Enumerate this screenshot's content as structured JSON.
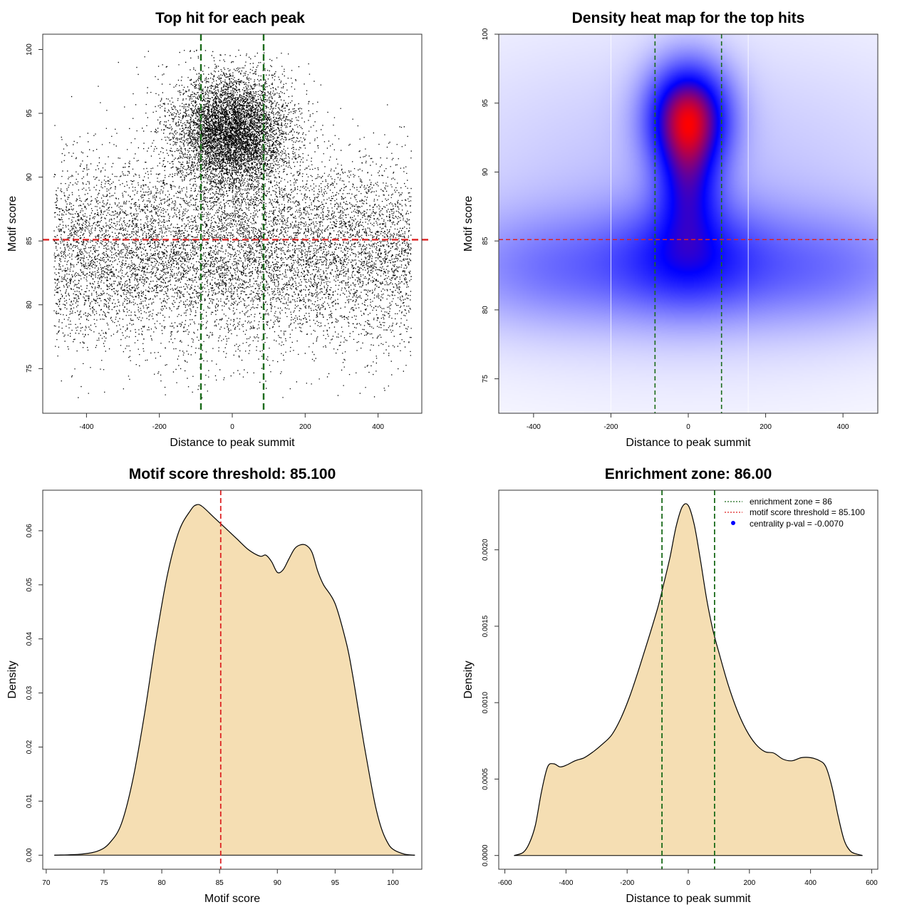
{
  "chart_data": [
    {
      "type": "scatter",
      "title": "Top hit for each peak",
      "xlabel": "Distance to peak summit",
      "ylabel": "Motif score",
      "xlim": [
        -520,
        520
      ],
      "ylim": [
        71.5,
        101.2
      ],
      "xticks": [
        -400,
        -200,
        0,
        200,
        400
      ],
      "yticks": [
        75,
        80,
        85,
        90,
        95,
        100
      ],
      "x_range_of_points": [
        -490,
        490
      ],
      "y_range_of_points": [
        72.5,
        100
      ],
      "point_clusters": [
        {
          "n": 9000,
          "x_mean": 0,
          "x_sd": 290,
          "y_mean": 84,
          "y_sd": 3.6
        },
        {
          "n": 6500,
          "x_mean": 0,
          "x_sd": 75,
          "y_mean": 93.5,
          "y_sd": 2.2
        },
        {
          "n": 1000,
          "x_mean": 0,
          "x_sd": 130,
          "y_mean": 89.5,
          "y_sd": 5.5
        }
      ],
      "vlines": [
        -86,
        86
      ],
      "hline": 85.1,
      "point_color": "#000000",
      "vline_color": "#1a6b1a",
      "hline_color": "#dd2222"
    },
    {
      "type": "heatmap",
      "title": "Density heat map for the top hits",
      "xlabel": "Distance to peak summit",
      "ylabel": "Motif score",
      "xlim": [
        -490,
        490
      ],
      "ylim": [
        72.5,
        100
      ],
      "xticks": [
        -400,
        -200,
        0,
        200,
        400
      ],
      "yticks": [
        75,
        80,
        85,
        90,
        95,
        100
      ],
      "density_blobs": [
        {
          "x": 0,
          "y": 94,
          "sx": 70,
          "sy": 2.6,
          "w": 1.0
        },
        {
          "x": 0,
          "y": 89,
          "sx": 55,
          "sy": 2.8,
          "w": 0.45
        },
        {
          "x": 0,
          "y": 84,
          "sx": 120,
          "sy": 2.8,
          "w": 0.35
        },
        {
          "x": -300,
          "y": 83,
          "sx": 230,
          "sy": 2.8,
          "w": 0.26
        },
        {
          "x": 300,
          "y": 83,
          "sx": 230,
          "sy": 2.8,
          "w": 0.26
        },
        {
          "x": 0,
          "y": 88,
          "sx": 520,
          "sy": 8,
          "w": 0.12
        }
      ],
      "palette": [
        "#ffffff",
        "#0000ff",
        "#ff0000"
      ],
      "vlines": [
        -86,
        86
      ],
      "hline": 85.1,
      "white_gridlines": [
        -200,
        155
      ],
      "vline_color": "#1a6b1a",
      "hline_color": "#dd2222"
    },
    {
      "type": "area",
      "title": "Motif score threshold: 85.100",
      "xlabel": "Motif score",
      "ylabel": "Density",
      "xlim": [
        69.7,
        102.5
      ],
      "ylim": [
        -0.0026,
        0.0675
      ],
      "xticks": [
        70,
        75,
        80,
        85,
        90,
        95,
        100
      ],
      "yticks": [
        0.0,
        0.01,
        0.02,
        0.03,
        0.04,
        0.05,
        0.06
      ],
      "ytick_labels": [
        "0.00",
        "0.01",
        "0.02",
        "0.03",
        "0.04",
        "0.05",
        "0.06"
      ],
      "x": [
        70.7,
        73,
        74.5,
        75.5,
        76.5,
        77.5,
        78.5,
        79.5,
        80.5,
        81.5,
        82.5,
        83.0,
        83.5,
        84.5,
        85.5,
        86.5,
        87.5,
        88.5,
        89.0,
        89.5,
        90.0,
        90.5,
        91.0,
        91.5,
        92.0,
        92.5,
        93.0,
        93.5,
        94.0,
        95.0,
        96.0,
        96.5,
        97.0,
        97.5,
        98.0,
        98.5,
        99.0,
        99.5,
        100,
        101,
        101.9
      ],
      "y": [
        0.0,
        0.0002,
        0.0008,
        0.0023,
        0.0058,
        0.014,
        0.026,
        0.04,
        0.052,
        0.06,
        0.0638,
        0.0648,
        0.0645,
        0.0625,
        0.0605,
        0.0585,
        0.0565,
        0.0553,
        0.0555,
        0.0543,
        0.0523,
        0.0528,
        0.0548,
        0.0567,
        0.0574,
        0.0573,
        0.056,
        0.0525,
        0.05,
        0.0465,
        0.039,
        0.0335,
        0.027,
        0.0205,
        0.0145,
        0.009,
        0.005,
        0.0025,
        0.0011,
        0.0002,
        0.0
      ],
      "vline": 85.1,
      "fill_color": "#f5deb3",
      "vline_color": "#dd2222"
    },
    {
      "type": "area",
      "title": "Enrichment zone: 86.00",
      "xlabel": "Distance to peak summit",
      "ylabel": "Density",
      "xlim": [
        -620,
        620
      ],
      "ylim": [
        -9e-05,
        0.00239
      ],
      "xticks": [
        -600,
        -400,
        -200,
        0,
        200,
        400,
        600
      ],
      "yticks": [
        0.0,
        0.0005,
        0.001,
        0.0015,
        0.002
      ],
      "ytick_labels": [
        "0.0000",
        "0.0005",
        "0.0010",
        "0.0015",
        "0.0020"
      ],
      "x": [
        -570,
        -540,
        -520,
        -500,
        -480,
        -460,
        -440,
        -420,
        -400,
        -370,
        -340,
        -310,
        -280,
        -250,
        -220,
        -190,
        -160,
        -130,
        -100,
        -80,
        -60,
        -40,
        -20,
        0,
        20,
        40,
        60,
        80,
        100,
        130,
        160,
        190,
        220,
        250,
        280,
        310,
        340,
        370,
        400,
        430,
        450,
        470,
        490,
        510,
        530,
        550,
        570
      ],
      "y": [
        0.0,
        2e-05,
        8e-05,
        0.0002,
        0.00042,
        0.00058,
        0.0006,
        0.00058,
        0.00059,
        0.00062,
        0.00064,
        0.00068,
        0.00073,
        0.00079,
        0.0009,
        0.00105,
        0.00123,
        0.00142,
        0.00162,
        0.00178,
        0.00195,
        0.00215,
        0.00228,
        0.00229,
        0.00216,
        0.00193,
        0.00168,
        0.00148,
        0.00133,
        0.00112,
        0.00095,
        0.00082,
        0.00073,
        0.00068,
        0.00067,
        0.00063,
        0.00062,
        0.00064,
        0.00064,
        0.00062,
        0.00058,
        0.00045,
        0.00026,
        0.0001,
        3e-05,
        1e-05,
        0.0
      ],
      "vlines": [
        -86,
        86
      ],
      "fill_color": "#f5deb3",
      "vline_color": "#1a6b1a",
      "legend": {
        "position": "top-right",
        "entries": [
          {
            "label": "enrichment zone = 86",
            "color": "#1a6b1a",
            "style": "dotted-line"
          },
          {
            "label": "motif score threshold = 85.100",
            "color": "#dd2222",
            "style": "dotted-line"
          },
          {
            "label": "centrality p-val = -0.0070",
            "color": "#0000ff",
            "style": "point"
          }
        ]
      }
    }
  ]
}
